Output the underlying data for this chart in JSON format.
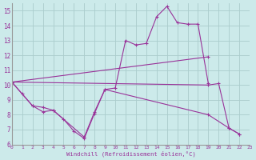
{
  "bg_color": "#cceaea",
  "grid_color": "#aacccc",
  "line_color": "#993399",
  "xlabel": "Windchill (Refroidissement éolien,°C)",
  "xlim": [
    0,
    23
  ],
  "ylim": [
    6,
    15.5
  ],
  "yticks": [
    6,
    7,
    8,
    9,
    10,
    11,
    12,
    13,
    14,
    15
  ],
  "xticks": [
    0,
    1,
    2,
    3,
    4,
    5,
    6,
    7,
    8,
    9,
    10,
    11,
    12,
    13,
    14,
    15,
    16,
    17,
    18,
    19,
    20,
    21,
    22,
    23
  ],
  "line1_x": [
    0,
    1,
    2,
    3,
    4,
    5,
    6,
    7,
    8,
    9,
    10,
    11,
    12,
    13,
    14,
    15,
    16,
    17,
    18,
    19
  ],
  "line1_y": [
    10.2,
    9.4,
    8.6,
    8.5,
    8.3,
    7.7,
    6.9,
    6.4,
    8.1,
    9.7,
    9.8,
    13.0,
    12.7,
    12.8,
    14.6,
    15.3,
    14.2,
    14.1,
    14.1,
    10.1
  ],
  "line2_x": [
    0,
    19,
    20,
    21,
    22
  ],
  "line2_y": [
    10.2,
    10.0,
    10.1,
    7.1,
    6.7
  ],
  "line3_x": [
    0,
    19
  ],
  "line3_y": [
    10.2,
    11.9
  ],
  "line4_x": [
    0,
    2,
    3,
    4,
    7,
    8,
    9,
    19,
    21,
    22
  ],
  "line4_y": [
    10.2,
    8.6,
    8.2,
    8.3,
    6.5,
    8.2,
    9.7,
    8.0,
    7.1,
    6.7
  ]
}
